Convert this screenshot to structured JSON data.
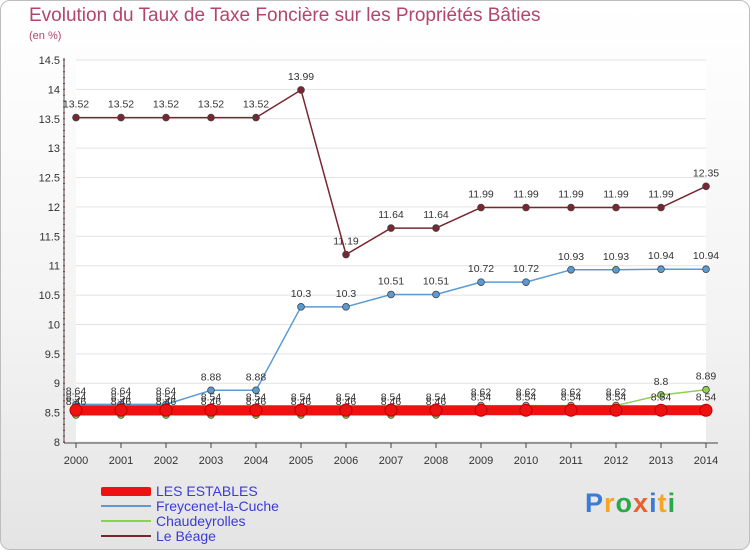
{
  "header": {
    "title": "Evolution du Taux de Taxe Foncière sur les Propriétés Bâties",
    "unit": "(en %)"
  },
  "logo": {
    "text": "Proxiti",
    "colors": [
      "#3a7bd5",
      "#f5a623",
      "#2ba84a",
      "#e8602c",
      "#3a7bd5",
      "#f5a623",
      "#2ba84a"
    ]
  },
  "chart_data": {
    "type": "line",
    "title": "Evolution du Taux de Taxe Foncière sur les Propriétés Bâties",
    "ylabel": "(en %)",
    "xlabel": "",
    "ylim": [
      8,
      14.5
    ],
    "yticks": [
      "8",
      "8.5",
      "9",
      "9.5",
      "10",
      "10.5",
      "11",
      "11.5",
      "12",
      "12.5",
      "13",
      "13.5",
      "14",
      "14.5"
    ],
    "grid": true,
    "legend_position": "bottom-left",
    "x": [
      "2000",
      "2001",
      "2002",
      "2003",
      "2004",
      "2005",
      "2006",
      "2007",
      "2008",
      "2009",
      "2010",
      "2011",
      "2012",
      "2013",
      "2014"
    ],
    "series": [
      {
        "name": "Le Béage",
        "color": "#7a2630",
        "values": [
          13.52,
          13.52,
          13.52,
          13.52,
          13.52,
          13.99,
          11.19,
          11.64,
          11.64,
          11.99,
          11.99,
          11.99,
          11.99,
          11.99,
          12.35
        ],
        "labels": [
          "13.52",
          "13.52",
          "13.52",
          "13.52",
          "13.52",
          "13.99",
          "11.19",
          "11.64",
          "11.64",
          "11.99",
          "11.99",
          "11.99",
          "11.99",
          "11.99",
          "12.35"
        ]
      },
      {
        "name": "Freycenet-la-Cuche",
        "color": "#5b9bd5",
        "values": [
          8.64,
          8.64,
          8.64,
          8.88,
          8.88,
          10.3,
          10.3,
          10.51,
          10.51,
          10.72,
          10.72,
          10.93,
          10.93,
          10.94,
          10.94
        ],
        "labels": [
          "8.64",
          "8.64",
          "8.64",
          "8.88",
          "8.88",
          "10.3",
          "10.3",
          "10.51",
          "10.51",
          "10.72",
          "10.72",
          "10.93",
          "10.93",
          "10.94",
          "10.94"
        ]
      },
      {
        "name": "Chaudeyrolles",
        "color": "#8fd14f",
        "values": [
          8.46,
          8.46,
          8.46,
          8.46,
          8.46,
          8.46,
          8.46,
          8.46,
          8.46,
          8.62,
          8.62,
          8.62,
          8.62,
          8.8,
          8.89
        ],
        "labels": [
          "8.46",
          "8.46",
          "8.46",
          "8.46",
          "8.46",
          "8.46",
          "8.46",
          "8.46",
          "8.46",
          "8.62",
          "8.62",
          "8.62",
          "8.62",
          "8.8",
          "8.89"
        ]
      },
      {
        "name": "LES ESTABLES",
        "color": "#ee1111",
        "values": [
          8.54,
          8.54,
          8.54,
          8.54,
          8.54,
          8.54,
          8.54,
          8.54,
          8.54,
          8.54,
          8.54,
          8.54,
          8.54,
          8.54,
          8.54
        ],
        "labels": [
          "8.54",
          "8.54",
          "8.54",
          "8.54",
          "8.54",
          "8.54",
          "8.54",
          "8.54",
          "8.54",
          "8.54",
          "8.54",
          "8.54",
          "8.54",
          "8.54",
          "8.54"
        ]
      }
    ],
    "legend": [
      "LES ESTABLES",
      "Freycenet-la-Cuche",
      "Chaudeyrolles",
      "Le Béage"
    ]
  }
}
